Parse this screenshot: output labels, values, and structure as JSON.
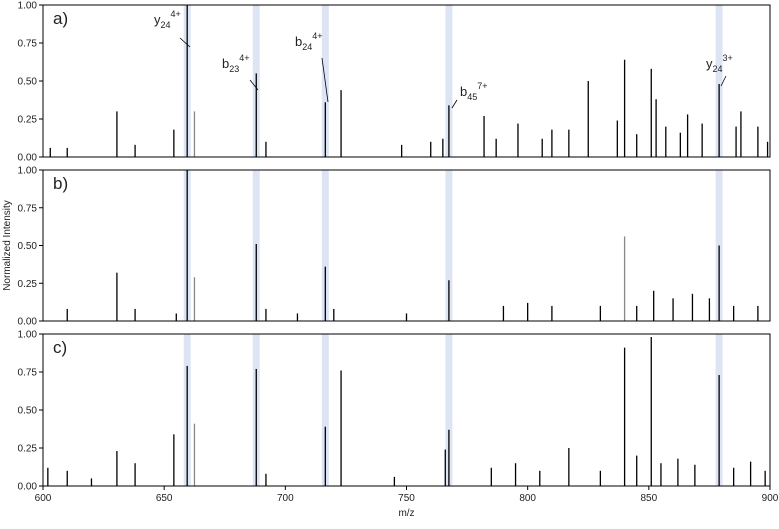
{
  "chart_data": [
    {
      "type": "stem",
      "panel_label": "a)",
      "xlim": [
        600,
        900
      ],
      "ylim": [
        0,
        1
      ],
      "yticks": [
        {
          "value": 0,
          "label": "0.00"
        },
        {
          "value": 0.25,
          "label": "0.25"
        },
        {
          "value": 0.5,
          "label": "0.50"
        },
        {
          "value": 0.75,
          "label": "0.75"
        },
        {
          "value": 1,
          "label": "1.00"
        }
      ],
      "highlight_x": [
        659.5,
        688,
        716.5,
        767.5,
        879
      ],
      "annotations": [
        {
          "base": "y",
          "sub": "24",
          "sup": "4+"
        },
        {
          "base": "b",
          "sub": "23",
          "sup": "4+"
        },
        {
          "base": "b",
          "sub": "24",
          "sup": "4+"
        },
        {
          "base": "b",
          "sub": "45",
          "sup": "7+"
        },
        {
          "base": "y",
          "sub": "24",
          "sup": "3+"
        }
      ],
      "series": [
        {
          "color": "#000000",
          "x": [
            603,
            610,
            630.5,
            638,
            654,
            659.5,
            688,
            692,
            716.5,
            723,
            748,
            760,
            765,
            767.5,
            782,
            787,
            796,
            806,
            810,
            817,
            825,
            837,
            840,
            845,
            851,
            853,
            857,
            863,
            866,
            872,
            879,
            886,
            888,
            895,
            899
          ],
          "values": [
            0.06,
            0.06,
            0.3,
            0.08,
            0.18,
            1.0,
            0.55,
            0.1,
            0.36,
            0.44,
            0.08,
            0.1,
            0.12,
            0.34,
            0.27,
            0.12,
            0.22,
            0.12,
            0.18,
            0.18,
            0.5,
            0.24,
            0.64,
            0.15,
            0.58,
            0.38,
            0.2,
            0.16,
            0.28,
            0.22,
            0.48,
            0.2,
            0.3,
            0.2,
            0.1
          ]
        },
        {
          "color": "#888888",
          "x": [
            662.5
          ],
          "values": [
            0.3
          ]
        }
      ]
    },
    {
      "type": "stem",
      "panel_label": "b)",
      "ylabel": "Normalized Intensity",
      "xlim": [
        600,
        900
      ],
      "ylim": [
        0,
        1
      ],
      "yticks": [
        {
          "value": 0,
          "label": "0.00"
        },
        {
          "value": 0.25,
          "label": "0.25"
        },
        {
          "value": 0.5,
          "label": "0.50"
        },
        {
          "value": 0.75,
          "label": "0.75"
        },
        {
          "value": 1,
          "label": "1.00"
        }
      ],
      "highlight_x": [
        659.5,
        688,
        716.5,
        767.5,
        879
      ],
      "series": [
        {
          "color": "#000000",
          "x": [
            610,
            630.5,
            638,
            655,
            659.5,
            688,
            692,
            705,
            716.5,
            720,
            750,
            767.5,
            790,
            800,
            810,
            830,
            845,
            852,
            860,
            868,
            875,
            879,
            885,
            895
          ],
          "values": [
            0.08,
            0.32,
            0.08,
            0.05,
            1.0,
            0.51,
            0.08,
            0.05,
            0.36,
            0.08,
            0.05,
            0.27,
            0.1,
            0.12,
            0.1,
            0.1,
            0.1,
            0.2,
            0.15,
            0.18,
            0.15,
            0.5,
            0.1,
            0.1
          ]
        },
        {
          "color": "#888888",
          "x": [
            662.5,
            840
          ],
          "values": [
            0.29,
            0.56
          ]
        }
      ]
    },
    {
      "type": "stem",
      "panel_label": "c)",
      "xlabel": "m/z",
      "xlim": [
        600,
        900
      ],
      "ylim": [
        0,
        1
      ],
      "xticks": [
        600,
        650,
        700,
        750,
        800,
        850,
        900
      ],
      "yticks": [
        {
          "value": 0,
          "label": "0.00"
        },
        {
          "value": 0.25,
          "label": "0.25"
        },
        {
          "value": 0.5,
          "label": "0.50"
        },
        {
          "value": 0.75,
          "label": "0.75"
        },
        {
          "value": 1,
          "label": "1.00"
        }
      ],
      "highlight_x": [
        659.5,
        688,
        716.5,
        767.5,
        879
      ],
      "series": [
        {
          "color": "#000000",
          "x": [
            602,
            610,
            620,
            630.5,
            638,
            654,
            659.5,
            688,
            692,
            716.5,
            723,
            745,
            766,
            767.5,
            785,
            795,
            805,
            817,
            830,
            840,
            845,
            851,
            855,
            862,
            869,
            879,
            885,
            892,
            898
          ],
          "values": [
            0.12,
            0.1,
            0.05,
            0.23,
            0.15,
            0.34,
            0.79,
            0.77,
            0.08,
            0.39,
            0.76,
            0.06,
            0.24,
            0.37,
            0.12,
            0.15,
            0.1,
            0.25,
            0.1,
            0.91,
            0.2,
            0.98,
            0.15,
            0.18,
            0.14,
            0.73,
            0.12,
            0.16,
            0.1
          ]
        },
        {
          "color": "#888888",
          "x": [
            662.5
          ],
          "values": [
            0.41
          ]
        }
      ]
    }
  ]
}
